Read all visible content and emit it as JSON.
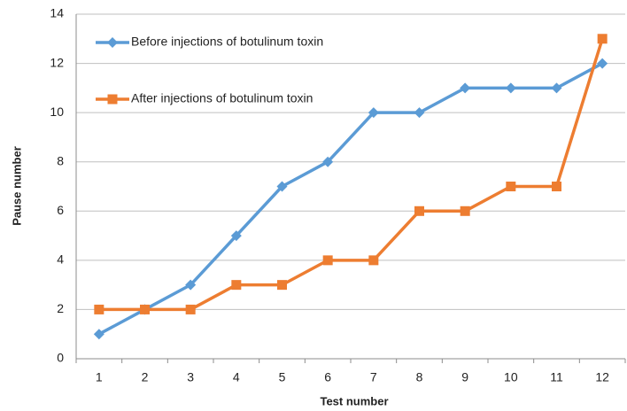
{
  "chart_data": {
    "type": "line",
    "x_label": "Test number",
    "y_label": "Pause number",
    "categories": [
      "1",
      "2",
      "3",
      "4",
      "5",
      "6",
      "7",
      "8",
      "9",
      "10",
      "11",
      "12"
    ],
    "series": [
      {
        "name": "Before injections of botulinum toxin",
        "color": "#5b9bd5",
        "marker": "diamond",
        "values": [
          1,
          2,
          3,
          5,
          7,
          8,
          10,
          10,
          11,
          11,
          11,
          12
        ]
      },
      {
        "name": "After injections of botulinum toxin",
        "color": "#ed7d31",
        "marker": "square",
        "values": [
          2,
          2,
          2,
          3,
          3,
          4,
          4,
          6,
          6,
          7,
          7,
          13
        ]
      }
    ],
    "ylim": [
      0,
      14
    ],
    "yticks": [
      0,
      2,
      4,
      6,
      8,
      10,
      12,
      14
    ],
    "grid": true,
    "legend": "upper left"
  }
}
